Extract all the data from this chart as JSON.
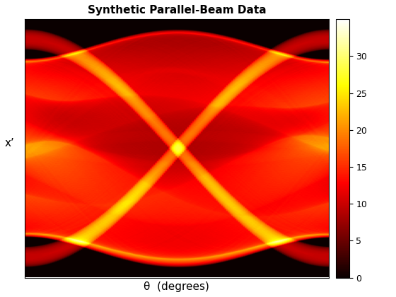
{
  "title": "Synthetic Parallel-Beam Data",
  "xlabel": "θ  (degrees)",
  "ylabel": "x’",
  "colormap": "hot",
  "vmin": 0,
  "vmax": 35,
  "n_angles": 180,
  "figsize": [
    5.6,
    4.2
  ],
  "dpi": 100,
  "title_fontsize": 11,
  "label_fontsize": 11,
  "colorbar_ticks": [
    0,
    5,
    10,
    15,
    20,
    25,
    30
  ],
  "background_color": "#ffffff"
}
